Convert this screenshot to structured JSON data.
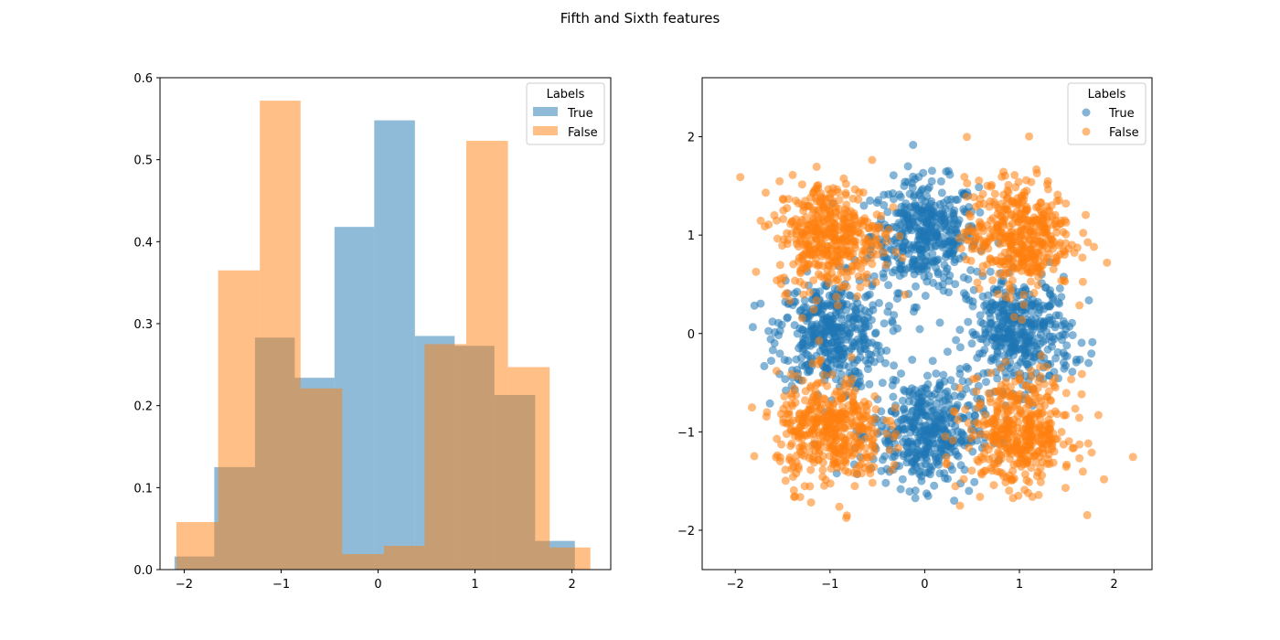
{
  "figure": {
    "suptitle": "Fifth and Sixth features"
  },
  "colors": {
    "true": "#1f77b4",
    "false": "#ff7f0e"
  },
  "chart_data": [
    {
      "type": "bar",
      "subtype": "histogram",
      "title": "",
      "xlabel": "",
      "ylabel": "",
      "xlim": [
        -2.25,
        2.4
      ],
      "ylim": [
        0,
        0.6
      ],
      "xticks": [
        -2,
        -1,
        0,
        1,
        2
      ],
      "yticks": [
        0.0,
        0.1,
        0.2,
        0.3,
        0.4,
        0.5,
        0.6
      ],
      "alpha": 0.5,
      "legend": {
        "title": "Labels",
        "position": "upper-right"
      },
      "series": [
        {
          "name": "True",
          "color": "#1f77b4",
          "bin_edges": [
            -2.1,
            -1.69,
            -1.27,
            -0.86,
            -0.45,
            -0.04,
            0.38,
            0.79,
            1.2,
            1.62,
            2.03
          ],
          "values": [
            0.016,
            0.125,
            0.283,
            0.234,
            0.418,
            0.548,
            0.285,
            0.273,
            0.213,
            0.035
          ]
        },
        {
          "name": "False",
          "color": "#ff7f0e",
          "bin_edges": [
            -2.08,
            -1.65,
            -1.22,
            -0.8,
            -0.37,
            0.06,
            0.48,
            0.91,
            1.34,
            1.77,
            2.19
          ],
          "values": [
            0.058,
            0.365,
            0.572,
            0.221,
            0.019,
            0.029,
            0.275,
            0.523,
            0.247,
            0.027
          ]
        }
      ]
    },
    {
      "type": "scatter",
      "title": "",
      "xlabel": "",
      "ylabel": "",
      "xlim": [
        -2.35,
        2.4
      ],
      "ylim": [
        -2.4,
        2.6
      ],
      "xticks": [
        -2,
        -1,
        0,
        1,
        2
      ],
      "yticks": [
        -2,
        -1,
        0,
        1,
        2
      ],
      "alpha": 0.55,
      "legend": {
        "title": "Labels",
        "position": "upper-right"
      },
      "series": [
        {
          "name": "True",
          "color": "#1f77b4",
          "cluster_centers": [
            [
              0,
              1
            ],
            [
              -1,
              0
            ],
            [
              1,
              0
            ],
            [
              0,
              -1
            ]
          ],
          "cluster_spread": 0.28,
          "points_per_cluster": 420
        },
        {
          "name": "False",
          "color": "#ff7f0e",
          "cluster_centers": [
            [
              -1,
              1
            ],
            [
              1,
              1
            ],
            [
              -1,
              -1
            ],
            [
              1,
              -1
            ]
          ],
          "cluster_spread": 0.28,
          "points_per_cluster": 420
        }
      ]
    }
  ]
}
